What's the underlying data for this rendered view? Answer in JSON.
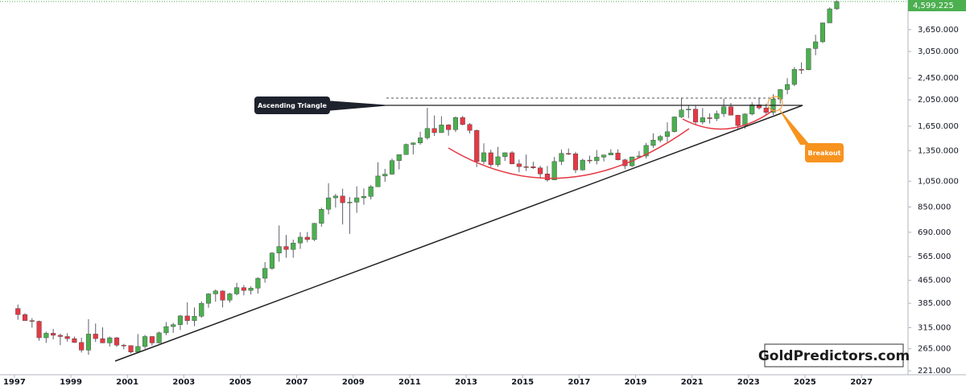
{
  "chart_data": {
    "type": "candlestick",
    "log_scale": true,
    "up_color": "#4caf50",
    "down_color": "#e53945",
    "x": [
      1997.125,
      1997.375,
      1997.625,
      1997.875,
      1998.125,
      1998.375,
      1998.625,
      1998.875,
      1999.125,
      1999.375,
      1999.625,
      1999.875,
      2000.125,
      2000.375,
      2000.625,
      2000.875,
      2001.125,
      2001.375,
      2001.625,
      2001.875,
      2002.125,
      2002.375,
      2002.625,
      2002.875,
      2003.125,
      2003.375,
      2003.625,
      2003.875,
      2004.125,
      2004.375,
      2004.625,
      2004.875,
      2005.125,
      2005.375,
      2005.625,
      2005.875,
      2006.125,
      2006.375,
      2006.625,
      2006.875,
      2007.125,
      2007.375,
      2007.625,
      2007.875,
      2008.125,
      2008.375,
      2008.625,
      2008.875,
      2009.125,
      2009.375,
      2009.625,
      2009.875,
      2010.125,
      2010.375,
      2010.625,
      2010.875,
      2011.125,
      2011.375,
      2011.625,
      2011.875,
      2012.125,
      2012.375,
      2012.625,
      2012.875,
      2013.125,
      2013.375,
      2013.625,
      2013.875,
      2014.125,
      2014.375,
      2014.625,
      2014.875,
      2015.125,
      2015.375,
      2015.625,
      2015.875,
      2016.125,
      2016.375,
      2016.625,
      2016.875,
      2017.125,
      2017.375,
      2017.625,
      2017.875,
      2018.125,
      2018.375,
      2018.625,
      2018.875,
      2019.125,
      2019.375,
      2019.625,
      2019.875,
      2020.125,
      2020.375,
      2020.625,
      2020.875,
      2021.125,
      2021.375,
      2021.625,
      2021.875,
      2022.125,
      2022.375,
      2022.625,
      2022.875,
      2023.125,
      2023.375,
      2023.625,
      2023.875,
      2024.125,
      2024.375,
      2024.625,
      2024.875,
      2025.125,
      2025.375,
      2025.625,
      2025.875,
      2026.125
    ],
    "open": [
      369,
      351,
      334,
      332,
      290,
      301,
      296,
      293,
      288,
      279,
      262,
      299,
      288,
      278,
      290,
      273,
      272,
      258,
      270,
      293,
      278,
      302,
      318,
      323,
      347,
      334,
      346,
      385,
      416,
      426,
      395,
      416,
      438,
      428,
      436,
      473,
      513,
      582,
      614,
      599,
      632,
      663,
      650,
      743,
      834,
      916,
      930,
      880,
      884,
      916,
      927,
      1003,
      1096,
      1113,
      1244,
      1307,
      1421,
      1439,
      1500,
      1620,
      1565,
      1668,
      1604,
      1773,
      1675,
      1595,
      1234,
      1327,
      1202,
      1284,
      1327,
      1211,
      1184,
      1183,
      1172,
      1115,
      1061,
      1235,
      1320,
      1316,
      1152,
      1249,
      1242,
      1280,
      1303,
      1325,
      1252,
      1192,
      1282,
      1292,
      1409,
      1472,
      1517,
      1577,
      1781,
      1886,
      1898,
      1707,
      1770,
      1757,
      1829,
      1937,
      1807,
      1660,
      1824,
      1969,
      1919,
      1849,
      2063,
      2230,
      2326,
      2634,
      2625,
      3124,
      3303,
      3858,
      4330
    ],
    "high": [
      381,
      355,
      341,
      334,
      305,
      312,
      300,
      301,
      293,
      290,
      338,
      326,
      316,
      293,
      292,
      276,
      272,
      299,
      297,
      294,
      305,
      330,
      328,
      350,
      388,
      372,
      391,
      418,
      431,
      428,
      420,
      456,
      447,
      443,
      477,
      540,
      587,
      730,
      675,
      650,
      691,
      692,
      745,
      845,
      1033,
      946,
      988,
      922,
      1007,
      990,
      1018,
      1227,
      1162,
      1265,
      1307,
      1431,
      1447,
      1577,
      1920,
      1803,
      1791,
      1678,
      1787,
      1796,
      1694,
      1605,
      1434,
      1361,
      1392,
      1331,
      1345,
      1255,
      1307,
      1232,
      1191,
      1191,
      1282,
      1362,
      1375,
      1337,
      1264,
      1296,
      1357,
      1307,
      1366,
      1365,
      1263,
      1287,
      1346,
      1439,
      1557,
      1535,
      1704,
      1789,
      2075,
      1966,
      1959,
      1916,
      1834,
      1877,
      2070,
      1998,
      1814,
      1833,
      2009,
      2079,
      1987,
      2146,
      2236,
      2450,
      2685,
      2790,
      3128,
      3500,
      3872,
      4381,
      4640
    ],
    "low": [
      336,
      334,
      315,
      283,
      278,
      286,
      273,
      281,
      278,
      257,
      252,
      280,
      278,
      270,
      269,
      264,
      255,
      256,
      265,
      272,
      277,
      296,
      302,
      309,
      323,
      319,
      342,
      371,
      390,
      372,
      387,
      411,
      411,
      414,
      417,
      456,
      507,
      542,
      560,
      560,
      602,
      636,
      642,
      723,
      800,
      846,
      736,
      681,
      810,
      865,
      904,
      1003,
      1045,
      1107,
      1157,
      1305,
      1309,
      1418,
      1478,
      1523,
      1563,
      1527,
      1573,
      1661,
      1555,
      1180,
      1207,
      1181,
      1182,
      1240,
      1206,
      1131,
      1142,
      1162,
      1077,
      1046,
      1061,
      1200,
      1302,
      1123,
      1146,
      1214,
      1205,
      1236,
      1302,
      1246,
      1160,
      1180,
      1276,
      1266,
      1382,
      1445,
      1451,
      1568,
      1765,
      1764,
      1677,
      1677,
      1687,
      1721,
      1780,
      1805,
      1615,
      1618,
      1804,
      1893,
      1810,
      1810,
      1984,
      2146,
      2293,
      2536,
      2615,
      2957,
      3268,
      3858,
      4300
    ],
    "close": [
      351,
      334,
      332,
      290,
      301,
      296,
      293,
      288,
      279,
      262,
      299,
      288,
      278,
      290,
      273,
      272,
      258,
      270,
      293,
      278,
      302,
      318,
      323,
      347,
      334,
      346,
      385,
      416,
      426,
      395,
      416,
      438,
      428,
      436,
      473,
      513,
      582,
      614,
      599,
      632,
      663,
      650,
      743,
      834,
      916,
      930,
      880,
      884,
      916,
      927,
      1003,
      1096,
      1113,
      1244,
      1307,
      1421,
      1439,
      1500,
      1620,
      1565,
      1668,
      1604,
      1773,
      1675,
      1595,
      1234,
      1327,
      1202,
      1284,
      1327,
      1211,
      1184,
      1183,
      1172,
      1115,
      1061,
      1235,
      1320,
      1316,
      1152,
      1249,
      1242,
      1280,
      1303,
      1325,
      1252,
      1192,
      1282,
      1292,
      1409,
      1472,
      1517,
      1577,
      1781,
      1886,
      1898,
      1707,
      1770,
      1757,
      1829,
      1937,
      1807,
      1660,
      1824,
      1969,
      1919,
      1849,
      2063,
      2230,
      2326,
      2634,
      2625,
      3124,
      3303,
      3858,
      4330,
      4599.225
    ],
    "xlim": [
      1996.49,
      2028.65
    ],
    "xticks": [
      1997,
      1999,
      2001,
      2003,
      2005,
      2007,
      2009,
      2011,
      2013,
      2015,
      2017,
      2019,
      2021,
      2023,
      2025,
      2027
    ],
    "ylim": [
      214,
      4657
    ],
    "yticks": [
      {
        "value": 221,
        "label": "221.000"
      },
      {
        "value": 265,
        "label": "265.000"
      },
      {
        "value": 315,
        "label": "315.000"
      },
      {
        "value": 385,
        "label": "385.000"
      },
      {
        "value": 465,
        "label": "465.000"
      },
      {
        "value": 565,
        "label": "565.000"
      },
      {
        "value": 690,
        "label": "690.000"
      },
      {
        "value": 850,
        "label": "850.000"
      },
      {
        "value": 1050,
        "label": "1,050.000"
      },
      {
        "value": 1350,
        "label": "1,350.000"
      },
      {
        "value": 1650,
        "label": "1,650.000"
      },
      {
        "value": 2050,
        "label": "2,050.000"
      },
      {
        "value": 2450,
        "label": "2,450.000"
      },
      {
        "value": 3050,
        "label": "3,050.000"
      },
      {
        "value": 3650,
        "label": "3,650.000"
      }
    ],
    "price_label": {
      "value": 4599.225,
      "label": "4,599.225"
    },
    "annotations": [
      "Ascending Triangle",
      "Breakout"
    ],
    "watermark": "GoldPredictors.com"
  }
}
